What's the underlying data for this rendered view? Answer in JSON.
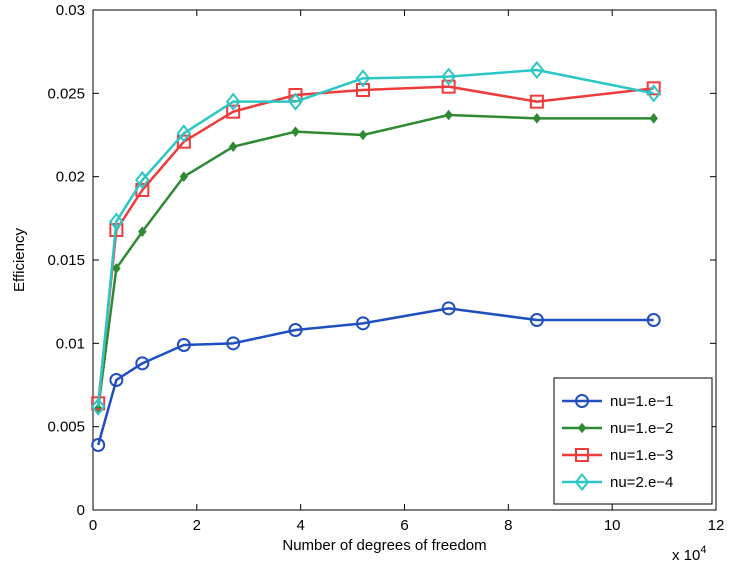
{
  "chart_data": {
    "type": "line",
    "xlabel": "Number of degrees of freedom",
    "ylabel": "Efficiency",
    "x_multiplier_label": "x 10",
    "x_multiplier_exp": "4",
    "xlim": [
      0,
      12
    ],
    "ylim": [
      0,
      0.03
    ],
    "xticks": [
      0,
      2,
      4,
      6,
      8,
      10,
      12
    ],
    "yticks": [
      0,
      0.005,
      0.01,
      0.015,
      0.02,
      0.025,
      0.03
    ],
    "xtick_labels": [
      "0",
      "2",
      "4",
      "6",
      "8",
      "10",
      "12"
    ],
    "ytick_labels": [
      "0",
      "0.005",
      "0.01",
      "0.015",
      "0.02",
      "0.025",
      "0.03"
    ],
    "grid": false,
    "legend_position": "bottom-right",
    "series": [
      {
        "name": "nu=1.e−1",
        "color": "#1f4fbf",
        "marker": "circle",
        "x": [
          0.1,
          0.45,
          0.95,
          1.75,
          2.7,
          3.9,
          5.2,
          6.85,
          8.55,
          10.8
        ],
        "y": [
          0.0039,
          0.0078,
          0.0088,
          0.0099,
          0.01,
          0.0108,
          0.0112,
          0.0121,
          0.0114,
          0.0114
        ]
      },
      {
        "name": "nu=1.e−2",
        "color": "#2f8a33",
        "marker": "diamond-filled",
        "x": [
          0.1,
          0.45,
          0.95,
          1.75,
          2.7,
          3.9,
          5.2,
          6.85,
          8.55,
          10.8
        ],
        "y": [
          0.0061,
          0.0145,
          0.0167,
          0.02,
          0.0218,
          0.0227,
          0.0225,
          0.0237,
          0.0235,
          0.0235
        ]
      },
      {
        "name": "nu=1.e−3",
        "color": "#ef3b3b",
        "marker": "square",
        "x": [
          0.1,
          0.45,
          0.95,
          1.75,
          2.7,
          3.9,
          5.2,
          6.85,
          8.55,
          10.8
        ],
        "y": [
          0.0064,
          0.0168,
          0.0192,
          0.0221,
          0.0239,
          0.0249,
          0.0252,
          0.0254,
          0.0245,
          0.0253
        ]
      },
      {
        "name": "nu=2.e−4",
        "color": "#2cc6c6",
        "marker": "diamond",
        "x": [
          0.1,
          0.45,
          0.95,
          1.75,
          2.7,
          3.9,
          5.2,
          6.85,
          8.55,
          10.8
        ],
        "y": [
          0.0062,
          0.0173,
          0.0198,
          0.0226,
          0.0245,
          0.0245,
          0.0259,
          0.026,
          0.0264,
          0.025
        ]
      }
    ]
  }
}
